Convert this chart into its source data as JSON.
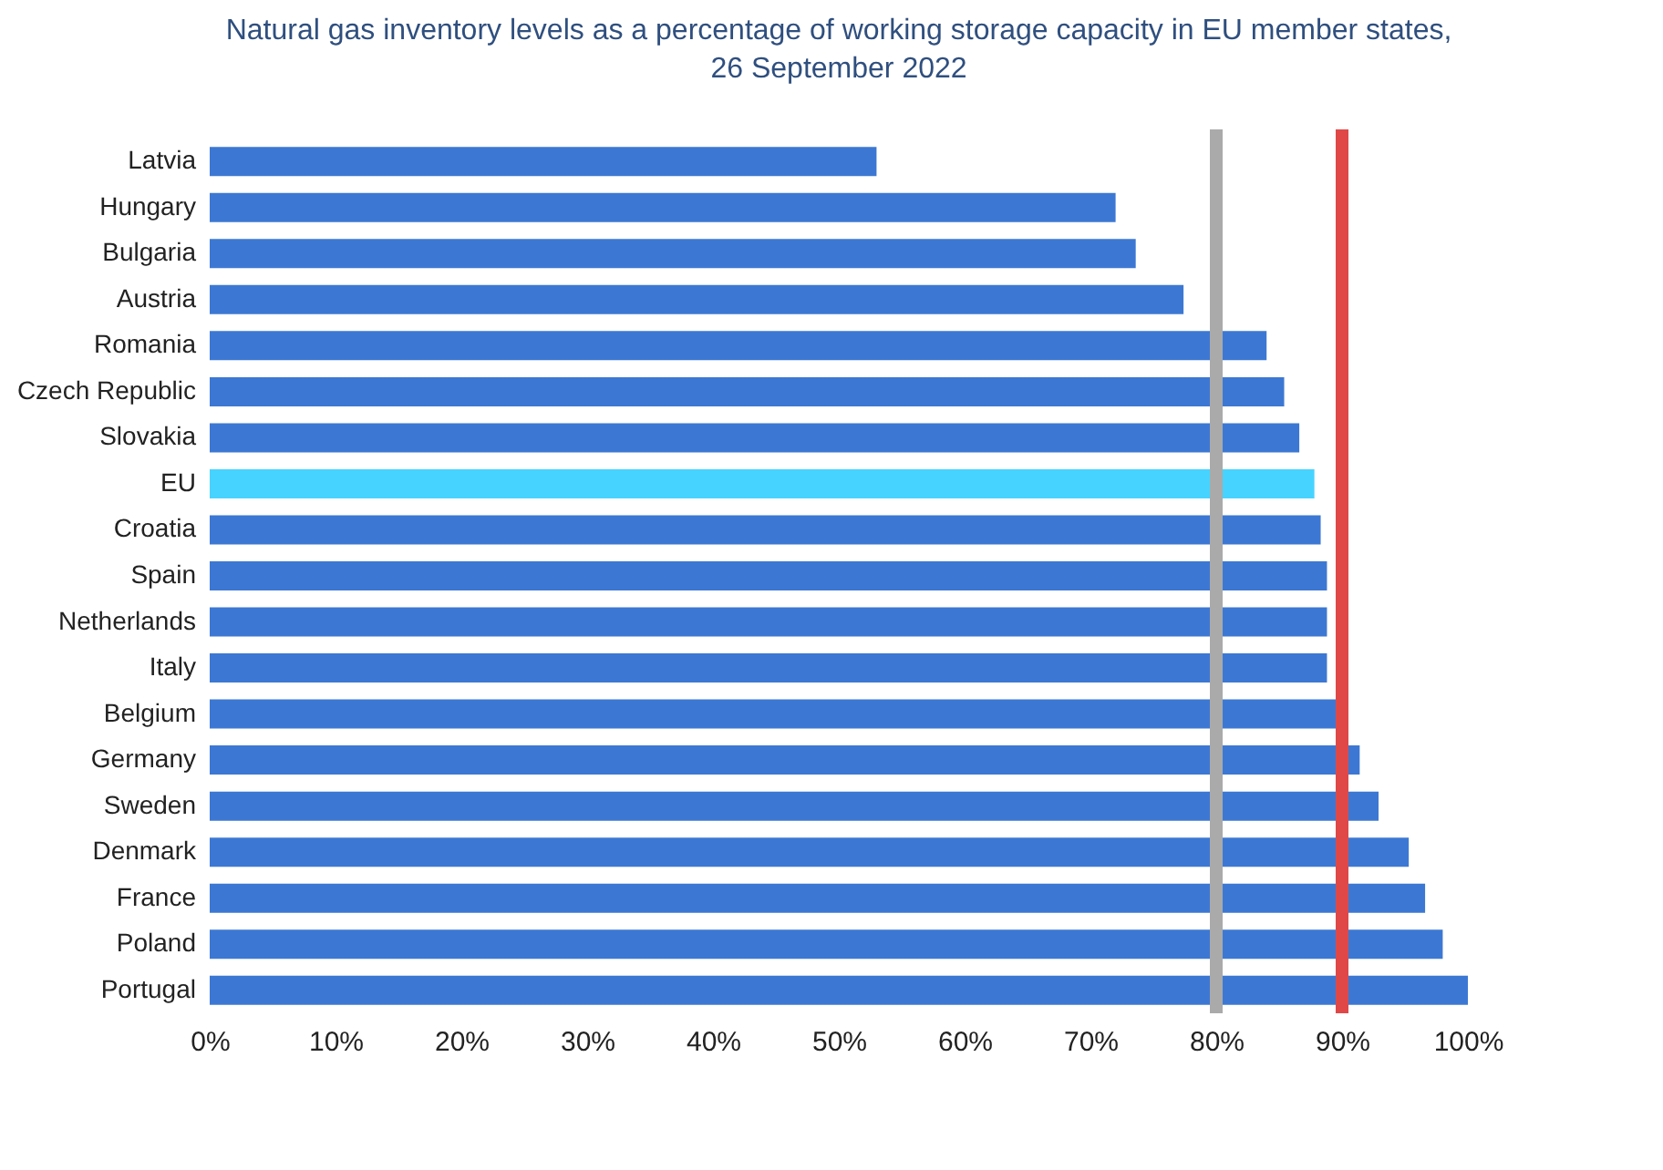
{
  "chart_data": {
    "type": "bar",
    "orientation": "horizontal",
    "title": [
      "Natural gas inventory levels as a percentage of working storage capacity in EU member states,",
      "26 September 2022"
    ],
    "categories": [
      "Latvia",
      "Hungary",
      "Bulgaria",
      "Austria",
      "Romania",
      "Czech Republic",
      "Slovakia",
      "EU",
      "Croatia",
      "Spain",
      "Netherlands",
      "Italy",
      "Belgium",
      "Germany",
      "Sweden",
      "Denmark",
      "France",
      "Poland",
      "Portugal"
    ],
    "values": [
      53,
      72,
      73.6,
      77.4,
      84,
      85.4,
      86.6,
      87.8,
      88.3,
      88.8,
      88.8,
      88.8,
      90.1,
      91.4,
      92.9,
      95.3,
      96.6,
      98,
      100
    ],
    "colors": [
      "#3c78d3",
      "#3c78d3",
      "#3c78d3",
      "#3c78d3",
      "#3c78d3",
      "#3c78d3",
      "#3c78d3",
      "#46d3ff",
      "#3c78d3",
      "#3c78d3",
      "#3c78d3",
      "#3c78d3",
      "#3c78d3",
      "#3c78d3",
      "#3c78d3",
      "#3c78d3",
      "#3c78d3",
      "#3c78d3",
      "#3c78d3"
    ],
    "xlim": [
      0,
      100
    ],
    "xticks": [
      {
        "value": 0,
        "label": "0%"
      },
      {
        "value": 10,
        "label": "10%"
      },
      {
        "value": 20,
        "label": "20%"
      },
      {
        "value": 30,
        "label": "30%"
      },
      {
        "value": 40,
        "label": "40%"
      },
      {
        "value": 50,
        "label": "50%"
      },
      {
        "value": 60,
        "label": "60%"
      },
      {
        "value": 70,
        "label": "70%"
      },
      {
        "value": 80,
        "label": "80%"
      },
      {
        "value": 90,
        "label": "90%"
      },
      {
        "value": 100,
        "label": "100%"
      }
    ],
    "ref_lines": [
      {
        "axis": "x",
        "value": 80,
        "color": "#aaaaaa"
      },
      {
        "axis": "x",
        "value": 90,
        "color": "#e04848"
      }
    ]
  }
}
